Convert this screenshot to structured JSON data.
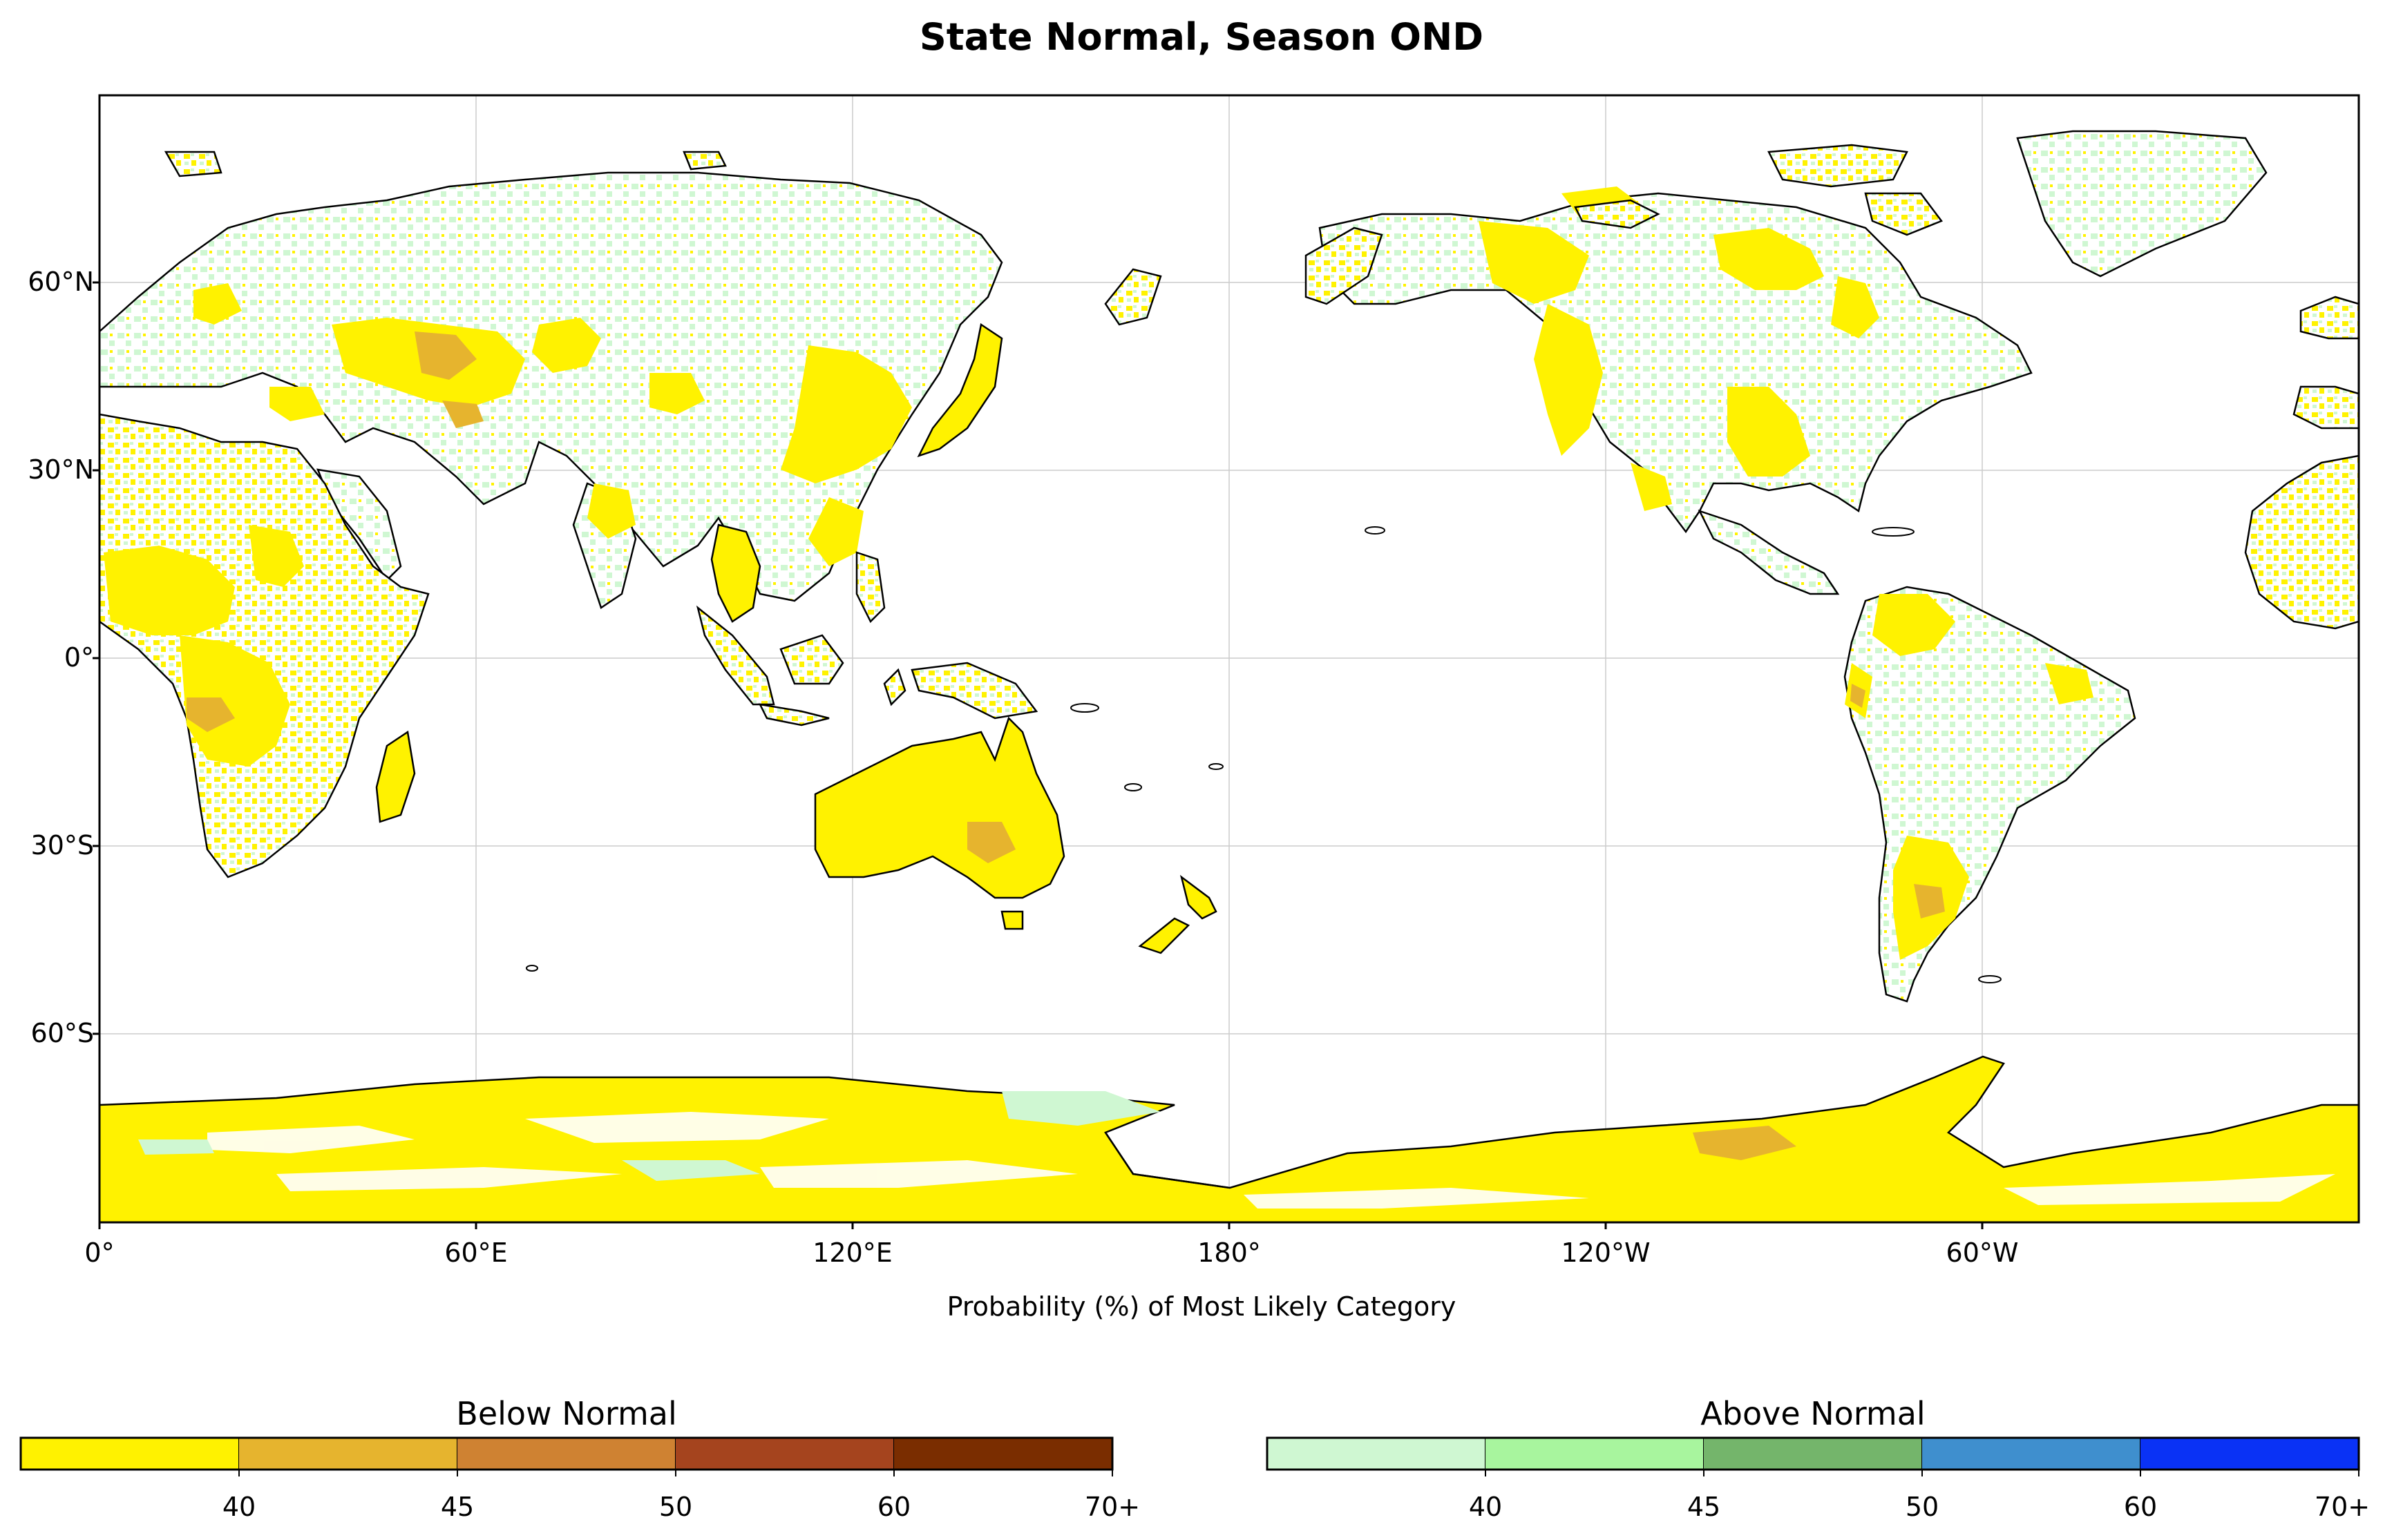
{
  "title": "State Normal, Season OND",
  "xlabel": "Probability (%) of Most Likely Category",
  "lat_ticks": [
    "60°N",
    "30°N",
    "0°",
    "30°S",
    "60°S"
  ],
  "lon_ticks": [
    "0°",
    "60°E",
    "120°E",
    "180°",
    "120°W",
    "60°W"
  ],
  "colorbars": [
    {
      "title": "Below Normal",
      "colors": [
        "#fff200",
        "#e6b42e",
        "#cf8232",
        "#a5441e",
        "#7a2d00"
      ],
      "ticks": [
        "40",
        "45",
        "50",
        "60",
        "70+"
      ]
    },
    {
      "title": "Above Normal",
      "colors": [
        "#cff7d2",
        "#a8f59e",
        "#74b56b",
        "#3f8fce",
        "#0a32f5"
      ],
      "ticks": [
        "40",
        "45",
        "50",
        "60",
        "70+"
      ]
    }
  ],
  "colors": {
    "coast": "#000000",
    "grid": "#cccccc",
    "ocean": "#ffffff"
  }
}
